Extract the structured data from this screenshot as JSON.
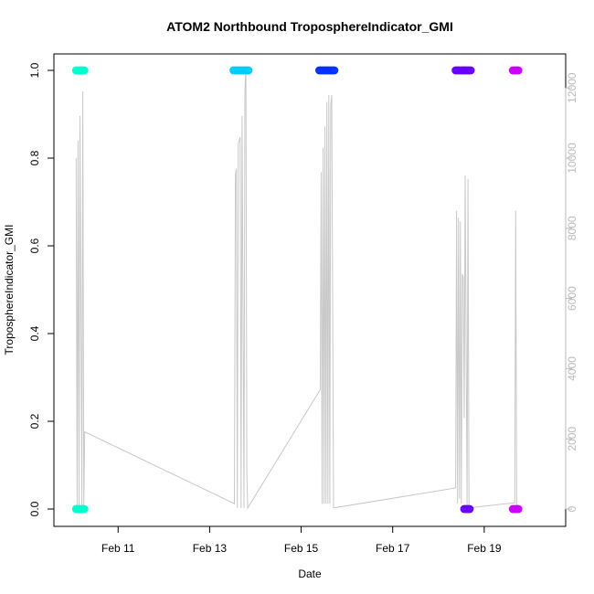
{
  "chart_data": {
    "type": "scatter",
    "title": "ATOM2 Northbound TroposphereIndicator_GMI",
    "xlabel": "Date",
    "ylabel": "TroposphereIndicator_GMI",
    "y_right_label": "",
    "xlim": [
      "2016-02-09T22:00",
      "2016-02-20T12:00"
    ],
    "ylim": [
      0,
      1
    ],
    "y_right_lim": [
      0,
      12500
    ],
    "x_ticks": [
      {
        "date": "2016-02-11T00:00",
        "label": "Feb 11"
      },
      {
        "date": "2016-02-13T00:00",
        "label": "Feb 13"
      },
      {
        "date": "2016-02-15T00:00",
        "label": "Feb 15"
      },
      {
        "date": "2016-02-17T00:00",
        "label": "Feb 17"
      },
      {
        "date": "2016-02-19T00:00",
        "label": "Feb 19"
      }
    ],
    "y_ticks": [
      "0.0",
      "0.2",
      "0.4",
      "0.6",
      "0.8",
      "1.0"
    ],
    "y_right_ticks": [
      "0",
      "2000",
      "4000",
      "6000",
      "8000",
      "10000",
      "12000"
    ],
    "grid": false,
    "legend": "none",
    "series": [
      {
        "color": "#00FFCC",
        "points": [
          {
            "x_start": "2016-02-10T02:00",
            "x_end": "2016-02-10T07:00",
            "y": 1
          },
          {
            "x_start": "2016-02-10T02:00",
            "x_end": "2016-02-10T07:00",
            "y": 0
          }
        ]
      },
      {
        "color": "#00CCFF",
        "points": [
          {
            "x_start": "2016-02-13T12:30",
            "x_end": "2016-02-13T20:30",
            "y": 1
          }
        ]
      },
      {
        "color": "#0033FF",
        "points": [
          {
            "x_start": "2016-02-15T09:30",
            "x_end": "2016-02-15T17:30",
            "y": 1
          }
        ]
      },
      {
        "color": "#6600FF",
        "points": [
          {
            "x_start": "2016-02-18T09:00",
            "x_end": "2016-02-18T17:30",
            "y": 1
          },
          {
            "x_start": "2016-02-18T13:30",
            "x_end": "2016-02-18T16:30",
            "y": 0
          }
        ]
      },
      {
        "color": "#CC00FF",
        "points": [
          {
            "x_start": "2016-02-19T15:00",
            "x_end": "2016-02-19T18:00",
            "y": 1
          },
          {
            "x_start": "2016-02-19T15:00",
            "x_end": "2016-02-19T18:00",
            "y": 0
          }
        ]
      }
    ],
    "altitude_trace": {
      "color": "#c8c8c8",
      "axis": "right",
      "points": [
        [
          "2016-02-10T02:00",
          10000
        ],
        [
          "2016-02-10T02:30",
          30
        ],
        [
          "2016-02-10T03:00",
          10500
        ],
        [
          "2016-02-10T03:30",
          30
        ],
        [
          "2016-02-10T04:00",
          11200
        ],
        [
          "2016-02-10T05:00",
          30
        ],
        [
          "2016-02-10T05:30",
          11900
        ],
        [
          "2016-02-10T06:00",
          30
        ],
        [
          "2016-02-10T06:30",
          2200
        ],
        [
          "2016-02-13T13:00",
          150
        ],
        [
          "2016-02-13T13:30",
          9500
        ],
        [
          "2016-02-13T14:00",
          9700
        ],
        [
          "2016-02-13T14:30",
          30
        ],
        [
          "2016-02-13T15:00",
          10400
        ],
        [
          "2016-02-13T16:00",
          10600
        ],
        [
          "2016-02-13T16:30",
          30
        ],
        [
          "2016-02-13T17:00",
          11200
        ],
        [
          "2016-02-13T18:00",
          30
        ],
        [
          "2016-02-13T18:30",
          11900
        ],
        [
          "2016-02-13T19:00",
          12600
        ],
        [
          "2016-02-13T19:30",
          1000
        ],
        [
          "2016-02-13T20:00",
          30
        ],
        [
          "2016-02-15T10:00",
          3400
        ],
        [
          "2016-02-15T10:30",
          9600
        ],
        [
          "2016-02-15T11:00",
          150
        ],
        [
          "2016-02-15T11:30",
          10300
        ],
        [
          "2016-02-15T12:00",
          150
        ],
        [
          "2016-02-15T12:30",
          10900
        ],
        [
          "2016-02-15T13:00",
          150
        ],
        [
          "2016-02-15T13:30",
          11600
        ],
        [
          "2016-02-15T14:00",
          150
        ],
        [
          "2016-02-15T14:30",
          11800
        ],
        [
          "2016-02-15T15:00",
          150
        ],
        [
          "2016-02-15T15:30",
          11500
        ],
        [
          "2016-02-15T16:00",
          11800
        ],
        [
          "2016-02-15T17:00",
          30
        ],
        [
          "2016-02-18T09:00",
          600
        ],
        [
          "2016-02-18T09:30",
          8500
        ],
        [
          "2016-02-18T10:00",
          150
        ],
        [
          "2016-02-18T10:30",
          8300
        ],
        [
          "2016-02-18T11:00",
          300
        ],
        [
          "2016-02-18T11:30",
          8200
        ],
        [
          "2016-02-18T12:00",
          150
        ],
        [
          "2016-02-18T12:30",
          6700
        ],
        [
          "2016-02-18T13:00",
          6600
        ],
        [
          "2016-02-18T13:30",
          2600
        ],
        [
          "2016-02-18T14:00",
          9500
        ],
        [
          "2016-02-18T15:00",
          100
        ],
        [
          "2016-02-18T15:30",
          9400
        ],
        [
          "2016-02-18T16:00",
          30
        ],
        [
          "2016-02-19T16:00",
          180
        ],
        [
          "2016-02-19T16:30",
          8500
        ],
        [
          "2016-02-19T17:00",
          30
        ]
      ]
    }
  }
}
